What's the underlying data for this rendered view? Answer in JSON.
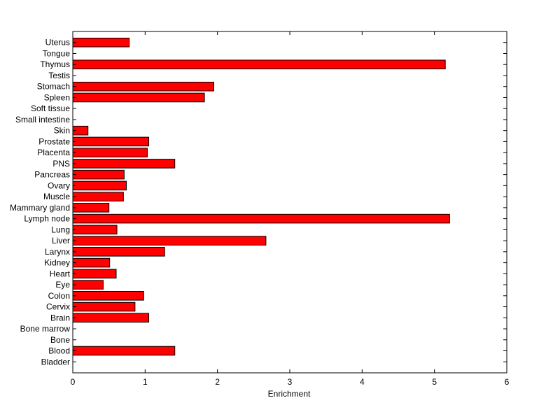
{
  "chart_data": {
    "type": "bar",
    "orientation": "horizontal",
    "title": "",
    "xlabel": "Enrichment",
    "ylabel": "",
    "xlim": [
      0,
      6
    ],
    "xticks": [
      0,
      1,
      2,
      3,
      4,
      5,
      6
    ],
    "grid": false,
    "bar_color": "#ff0000",
    "bar_edge_color": "#000000",
    "categories": [
      "Bladder",
      "Blood",
      "Bone",
      "Bone marrow",
      "Brain",
      "Cervix",
      "Colon",
      "Eye",
      "Heart",
      "Kidney",
      "Larynx",
      "Liver",
      "Lung",
      "Lymph node",
      "Mammary gland",
      "Muscle",
      "Ovary",
      "Pancreas",
      "PNS",
      "Placenta",
      "Prostate",
      "Skin",
      "Small intestine",
      "Soft tissue",
      "Spleen",
      "Stomach",
      "Testis",
      "Thymus",
      "Tongue",
      "Uterus"
    ],
    "values": [
      0,
      1.41,
      0,
      0,
      1.05,
      0.86,
      0.98,
      0.42,
      0.6,
      0.51,
      1.27,
      2.67,
      0.61,
      5.21,
      0.5,
      0.7,
      0.74,
      0.71,
      1.41,
      1.03,
      1.05,
      0.21,
      0,
      0,
      1.82,
      1.95,
      0,
      5.15,
      0,
      0.78
    ]
  }
}
